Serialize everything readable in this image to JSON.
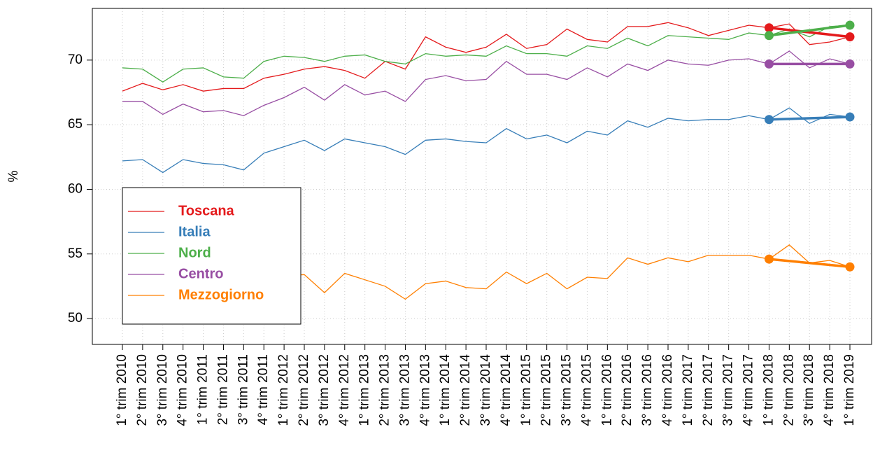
{
  "chart_data": {
    "type": "line",
    "y_label": "%",
    "categories": [
      "1° trim 2010",
      "2° trim 2010",
      "3° trim 2010",
      "4° trim 2010",
      "1° trim 2011",
      "2° trim 2011",
      "3° trim 2011",
      "4° trim 2011",
      "1° trim 2012",
      "2° trim 2012",
      "3° trim 2012",
      "4° trim 2012",
      "1° trim 2013",
      "2° trim 2013",
      "3° trim 2013",
      "4° trim 2013",
      "1° trim 2014",
      "2° trim 2014",
      "3° trim 2014",
      "4° trim 2014",
      "1° trim 2015",
      "2° trim 2015",
      "3° trim 2015",
      "4° trim 2015",
      "1° trim 2016",
      "2° trim 2016",
      "3° trim 2016",
      "4° trim 2016",
      "1° trim 2017",
      "2° trim 2017",
      "3° trim 2017",
      "4° trim 2017",
      "1° trim 2018",
      "2° trim 2018",
      "3° trim 2018",
      "4° trim 2018",
      "1° trim 2019"
    ],
    "series": [
      {
        "name": "Toscana",
        "color": "#e41a1c",
        "values": [
          67.6,
          68.2,
          67.7,
          68.1,
          67.6,
          67.8,
          67.8,
          68.6,
          68.9,
          69.3,
          69.5,
          69.2,
          68.6,
          69.9,
          69.3,
          71.8,
          71.0,
          70.6,
          71.0,
          72.0,
          70.9,
          71.2,
          72.4,
          71.6,
          71.4,
          72.6,
          72.6,
          72.9,
          72.5,
          71.9,
          72.3,
          72.7,
          72.5,
          72.8,
          71.2,
          71.4,
          71.8
        ]
      },
      {
        "name": "Italia",
        "color": "#377eb8",
        "values": [
          62.2,
          62.3,
          61.3,
          62.3,
          62.0,
          61.9,
          61.5,
          62.8,
          63.3,
          63.8,
          63.0,
          63.9,
          63.6,
          63.3,
          62.7,
          63.8,
          63.9,
          63.7,
          63.6,
          64.7,
          63.9,
          64.2,
          63.6,
          64.5,
          64.2,
          65.3,
          64.8,
          65.5,
          65.3,
          65.4,
          65.4,
          65.7,
          65.4,
          66.3,
          65.1,
          65.8,
          65.6
        ]
      },
      {
        "name": "Nord",
        "color": "#4daf4a",
        "values": [
          69.4,
          69.3,
          68.3,
          69.3,
          69.4,
          68.7,
          68.6,
          69.9,
          70.3,
          70.2,
          69.9,
          70.3,
          70.4,
          69.9,
          69.7,
          70.5,
          70.3,
          70.4,
          70.3,
          71.1,
          70.5,
          70.5,
          70.3,
          71.1,
          70.9,
          71.7,
          71.1,
          71.9,
          71.8,
          71.7,
          71.6,
          72.1,
          71.9,
          72.4,
          71.8,
          72.6,
          72.7
        ]
      },
      {
        "name": "Centro",
        "color": "#984ea3",
        "values": [
          66.8,
          66.8,
          65.8,
          66.6,
          66.0,
          66.1,
          65.7,
          66.5,
          67.1,
          67.9,
          66.9,
          68.1,
          67.3,
          67.6,
          66.8,
          68.5,
          68.8,
          68.4,
          68.5,
          69.9,
          68.9,
          68.9,
          68.5,
          69.4,
          68.7,
          69.7,
          69.2,
          70.0,
          69.7,
          69.6,
          70.0,
          70.1,
          69.7,
          70.7,
          69.4,
          70.1,
          69.7
        ]
      },
      {
        "name": "Mezzogiorno",
        "color": "#ff7f00",
        "values": [
          53.0,
          53.2,
          52.5,
          53.1,
          52.8,
          52.9,
          52.6,
          53.0,
          53.3,
          53.4,
          52.0,
          53.5,
          53.0,
          52.5,
          51.5,
          52.7,
          52.9,
          52.4,
          52.3,
          53.6,
          52.7,
          53.5,
          52.3,
          53.2,
          53.1,
          54.7,
          54.2,
          54.7,
          54.4,
          54.9,
          54.9,
          54.9,
          54.6,
          55.7,
          54.3,
          54.5,
          54.0
        ]
      }
    ],
    "highlight": {
      "from": "1° trim 2018",
      "to": "1° trim 2019"
    },
    "ylim": [
      48,
      74
    ],
    "yticks": [
      50,
      55,
      60,
      65,
      70
    ],
    "grid": true,
    "legend": "bottom-left"
  }
}
